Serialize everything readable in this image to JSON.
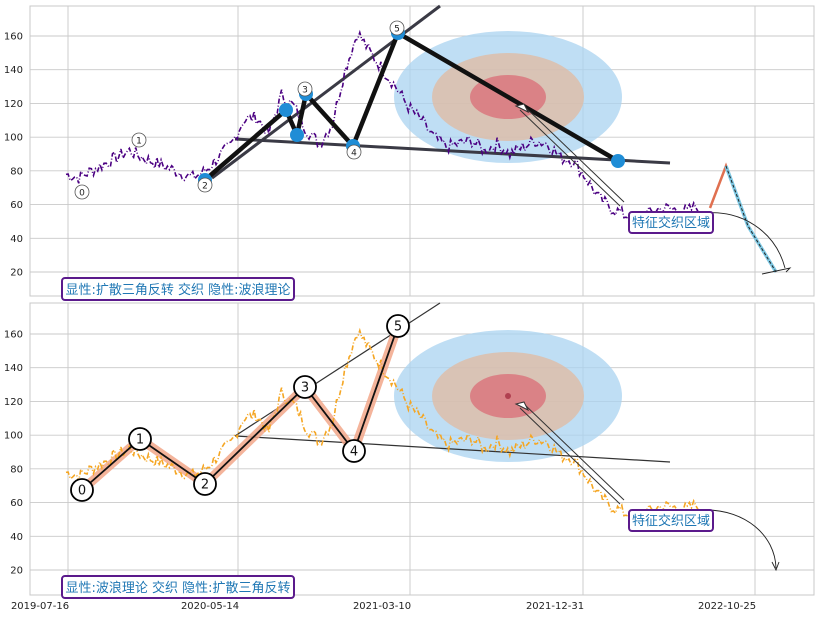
{
  "chart_data": [
    {
      "type": "line",
      "panel": "top",
      "title": "",
      "xlabel": "",
      "ylabel": "",
      "ylim": [
        10,
        175
      ],
      "ytick_labels": [
        "20",
        "40",
        "60",
        "80",
        "100",
        "120",
        "140",
        "160"
      ],
      "grid": true,
      "series_color": "#4b0082",
      "highlight_color": "#7ec8e3",
      "series": [
        {
          "x": [
            0,
            20,
            40,
            60,
            80,
            100,
            120,
            140,
            160,
            180,
            200,
            220,
            240,
            260,
            280,
            300,
            320,
            340,
            360,
            380,
            400,
            420,
            440,
            460,
            480,
            500,
            520,
            540,
            560,
            580,
            600,
            620,
            640,
            660,
            680,
            700,
            720,
            740,
            760,
            780,
            800,
            820,
            840,
            860,
            880,
            900,
            920,
            940,
            960,
            980,
            1000,
            1020,
            1040,
            1060,
            1080,
            1100,
            1120,
            1140,
            1160
          ],
          "values": [
            78,
            76,
            80,
            84,
            88,
            92,
            88,
            85,
            82,
            79,
            76,
            80,
            88,
            95,
            110,
            112,
            102,
            125,
            118,
            104,
            96,
            108,
            140,
            162,
            150,
            140,
            130,
            118,
            110,
            100,
            94,
            96,
            98,
            92,
            96,
            90,
            94,
            98,
            96,
            88,
            86,
            76,
            64,
            58,
            54,
            52,
            55,
            58,
            57,
            56,
            60,
            70,
            82,
            74,
            60,
            48,
            36,
            24,
            20
          ]
        }
      ],
      "wave_points": [
        {
          "label": "0",
          "x": 30,
          "y": 67
        },
        {
          "label": "1",
          "x": 140,
          "y": 98
        },
        {
          "label": "2",
          "x": 275,
          "y": 71
        },
        {
          "label": "3",
          "x": 470,
          "y": 128
        },
        {
          "label": "4",
          "x": 560,
          "y": 91
        },
        {
          "label": "5",
          "x": 650,
          "y": 163
        }
      ],
      "annotations": [
        "特征交织区域",
        "显性:扩散三角反转 交织 隐性:波浪理论"
      ]
    },
    {
      "type": "line",
      "panel": "bottom",
      "title": "",
      "xlabel": "",
      "ylabel": "",
      "ylim": [
        10,
        175
      ],
      "ytick_labels": [
        "20",
        "40",
        "60",
        "80",
        "100",
        "120",
        "140",
        "160"
      ],
      "xtick_labels": [
        "2019-07-16",
        "2020-05-14",
        "2021-03-10",
        "2021-12-31",
        "2022-10-25"
      ],
      "grid": true,
      "series_color": "#f5a623",
      "wave_points": [
        {
          "label": "0",
          "x": 30,
          "y": 67
        },
        {
          "label": "1",
          "x": 140,
          "y": 98
        },
        {
          "label": "2",
          "x": 275,
          "y": 71
        },
        {
          "label": "3",
          "x": 470,
          "y": 128
        },
        {
          "label": "4",
          "x": 560,
          "y": 91
        },
        {
          "label": "5",
          "x": 650,
          "y": 163
        }
      ],
      "annotations": [
        "特征交织区域",
        "显性:波浪理论 交织 隐性:扩散三角反转"
      ]
    }
  ],
  "labels": {
    "top_note": "特征交织区域",
    "top_legend": "显性:扩散三角反转 交织 隐性:波浪理论",
    "bottom_note": "特征交织区域",
    "bottom_legend": "显性:波浪理论 交织 隐性:扩散三角反转"
  }
}
